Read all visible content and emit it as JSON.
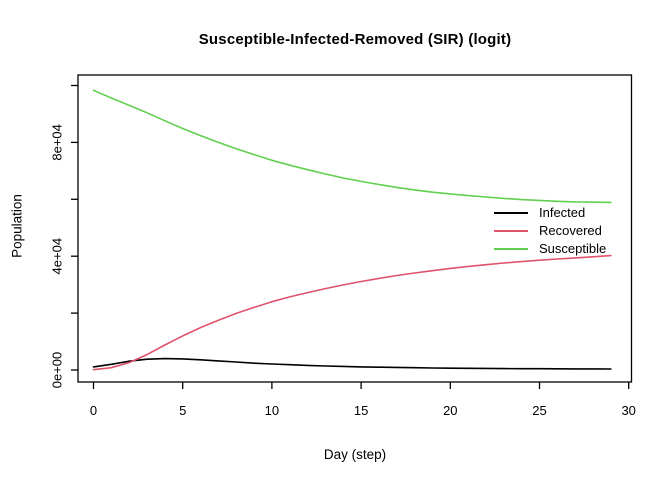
{
  "title": "Susceptible-Infected-Removed (SIR) (logit)",
  "x_axis": {
    "label": "Day (step)",
    "tick_values": [
      0,
      5,
      10,
      15,
      20,
      25,
      30
    ],
    "tick_labels": [
      "0",
      "5",
      "10",
      "15",
      "20",
      "25",
      "30"
    ],
    "range": [
      0,
      30
    ]
  },
  "y_axis": {
    "label": "Population",
    "tick_values": [
      0,
      20000,
      40000,
      60000,
      80000,
      100000
    ],
    "labeled_ticks": [
      {
        "value": 0,
        "label": "0e+00"
      },
      {
        "value": 40000,
        "label": "4e+04"
      },
      {
        "value": 80000,
        "label": "8e+04"
      }
    ],
    "range": [
      0,
      100000
    ]
  },
  "legend": {
    "items": [
      {
        "label": "Infected",
        "color": "#000000"
      },
      {
        "label": "Recovered",
        "color": "#DF536B"
      },
      {
        "label": "Susceptible",
        "color": "#61D04F"
      }
    ]
  },
  "chart_data": {
    "type": "line",
    "title": "Susceptible-Infected-Removed (SIR) (logit)",
    "xlabel": "Day (step)",
    "ylabel": "Population",
    "xlim": [
      0,
      30
    ],
    "ylim": [
      0,
      100000
    ],
    "grid": false,
    "legend_position": "right-middle",
    "x": [
      0,
      1,
      2,
      3,
      4,
      5,
      6,
      7,
      8,
      9,
      10,
      11,
      12,
      13,
      14,
      15,
      16,
      17,
      18,
      19,
      20,
      21,
      22,
      23,
      24,
      25,
      26,
      27,
      28,
      29
    ],
    "series": [
      {
        "name": "Infected",
        "color": "#000000",
        "values": [
          1100,
          2000,
          3100,
          3800,
          4000,
          3900,
          3600,
          3200,
          2800,
          2400,
          2100,
          1850,
          1600,
          1400,
          1250,
          1100,
          1000,
          900,
          800,
          700,
          650,
          600,
          550,
          500,
          470,
          440,
          420,
          400,
          380,
          360
        ]
      },
      {
        "name": "Recovered",
        "color": "#DF536B",
        "values": [
          100,
          800,
          2600,
          5400,
          8800,
          12000,
          14900,
          17500,
          19900,
          22000,
          24000,
          25700,
          27200,
          28600,
          29900,
          31100,
          32200,
          33200,
          34100,
          34900,
          35700,
          36400,
          37000,
          37600,
          38100,
          38600,
          39000,
          39400,
          39800,
          40200
        ]
      },
      {
        "name": "Susceptible",
        "color": "#61D04F",
        "values": [
          98300,
          95600,
          93000,
          90400,
          87600,
          84900,
          82400,
          80000,
          77800,
          75700,
          73700,
          72000,
          70400,
          68900,
          67500,
          66300,
          65200,
          64200,
          63300,
          62500,
          61900,
          61300,
          60800,
          60300,
          59900,
          59600,
          59300,
          59100,
          59000,
          58900
        ]
      }
    ]
  }
}
